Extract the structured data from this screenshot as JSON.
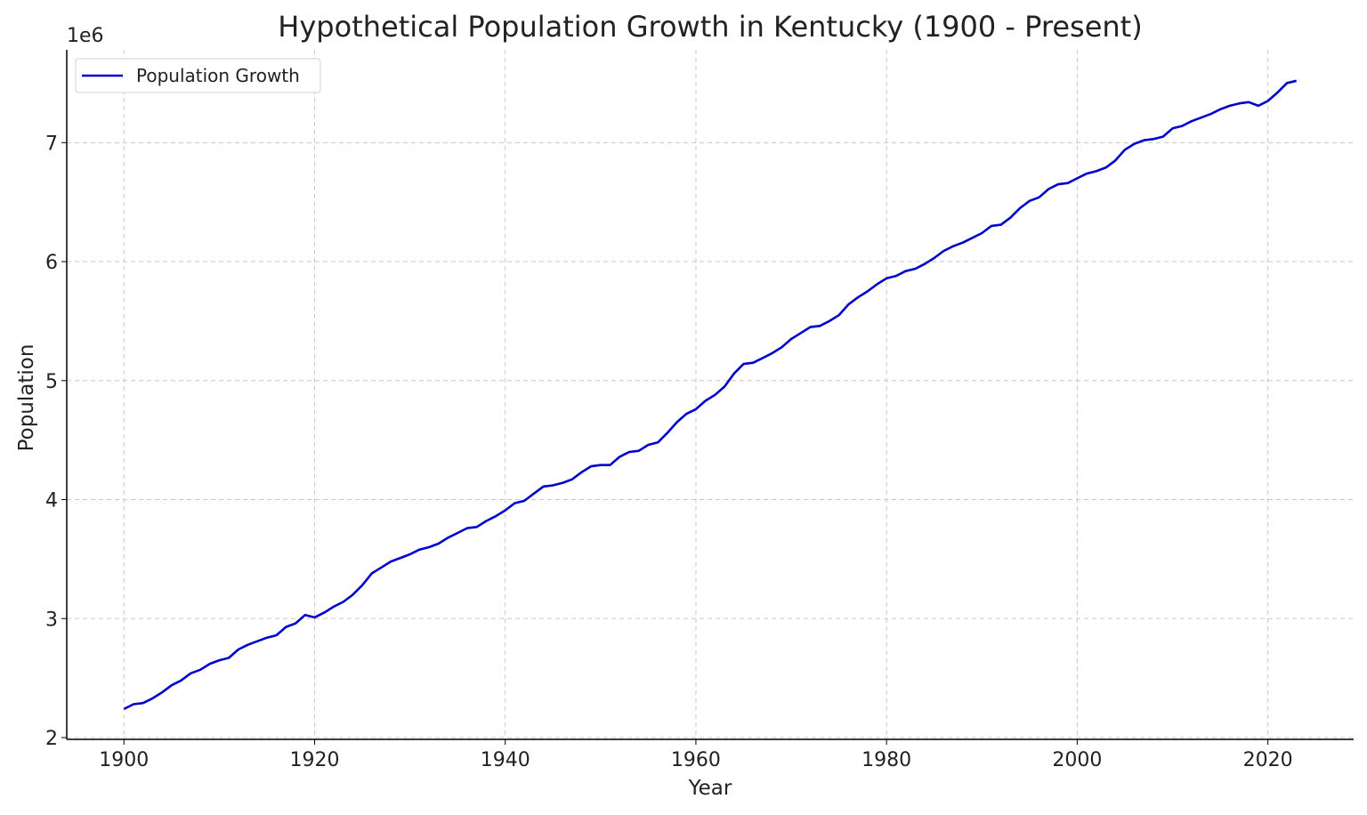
{
  "chart_data": {
    "type": "line",
    "title": "Hypothetical Population Growth in Kentucky (1900 - Present)",
    "xlabel": "Year",
    "ylabel": "Population",
    "y_offset_label": "1e6",
    "xlim": [
      1894,
      2029
    ],
    "ylim": [
      1.985,
      7.78
    ],
    "y_scale": 1000000,
    "x_ticks": [
      1900,
      1920,
      1940,
      1960,
      1980,
      2000,
      2020
    ],
    "y_ticks": [
      2,
      3,
      4,
      5,
      6,
      7
    ],
    "grid": true,
    "legend_position": "top-left",
    "series": [
      {
        "name": "Population Growth",
        "color": "#0000cc",
        "x_start": 1900,
        "values": [
          2.24,
          2.28,
          2.29,
          2.33,
          2.38,
          2.44,
          2.48,
          2.54,
          2.57,
          2.62,
          2.65,
          2.67,
          2.74,
          2.78,
          2.81,
          2.84,
          2.86,
          2.93,
          2.96,
          3.03,
          3.01,
          3.05,
          3.1,
          3.14,
          3.2,
          3.28,
          3.38,
          3.43,
          3.48,
          3.51,
          3.54,
          3.58,
          3.6,
          3.63,
          3.68,
          3.72,
          3.76,
          3.77,
          3.82,
          3.86,
          3.91,
          3.97,
          3.99,
          4.05,
          4.11,
          4.12,
          4.14,
          4.17,
          4.23,
          4.28,
          4.29,
          4.29,
          4.36,
          4.4,
          4.41,
          4.46,
          4.48,
          4.56,
          4.65,
          4.72,
          4.76,
          4.83,
          4.88,
          4.95,
          5.06,
          5.14,
          5.15,
          5.19,
          5.23,
          5.28,
          5.35,
          5.4,
          5.45,
          5.46,
          5.5,
          5.55,
          5.64,
          5.7,
          5.75,
          5.81,
          5.86,
          5.88,
          5.92,
          5.94,
          5.98,
          6.03,
          6.09,
          6.13,
          6.16,
          6.2,
          6.24,
          6.3,
          6.31,
          6.37,
          6.45,
          6.51,
          6.54,
          6.61,
          6.65,
          6.66,
          6.7,
          6.74,
          6.76,
          6.79,
          6.85,
          6.94,
          6.99,
          7.02,
          7.03,
          7.05,
          7.12,
          7.14,
          7.18,
          7.21,
          7.24,
          7.28,
          7.31,
          7.33,
          7.34,
          7.31,
          7.35,
          7.42,
          7.5,
          7.52
        ]
      }
    ]
  }
}
